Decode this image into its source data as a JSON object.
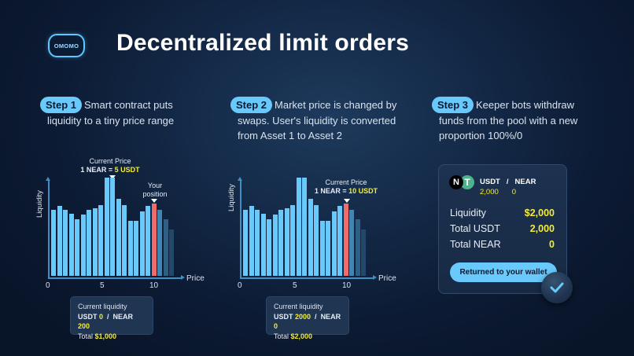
{
  "header": {
    "logo_text": "OMOMO",
    "title": "Decentralized limit orders"
  },
  "steps": [
    {
      "label": "Step 1",
      "line1": "Smart contract puts",
      "line2": "liquidity to a tiny price range",
      "line3": ""
    },
    {
      "label": "Step 2",
      "line1": "Market price is changed by",
      "line2": "swaps. User's liquidity is converted",
      "line3": "from Asset 1 to Asset 2"
    },
    {
      "label": "Step 3",
      "line1": "Keeper bots withdraw",
      "line2": "funds from the pool with a new",
      "line3": "proportion 100%/0"
    }
  ],
  "chart_common": {
    "ylabel": "Liquidity",
    "xlabel": "Price",
    "ticks": [
      "0",
      "5",
      "10"
    ]
  },
  "chart1": {
    "annotation_title": "Current Price",
    "annotation_prefix": "1 NEAR = ",
    "annotation_value": "5 USDT",
    "position_label_1": "Your",
    "position_label_2": "position",
    "liquidity_box": {
      "title": "Current liquidity",
      "usdt_label": "USDT",
      "usdt_value": "0",
      "near_label": "NEAR",
      "near_value": "200",
      "total_label": "Total",
      "total_value": "$1,000"
    }
  },
  "chart2": {
    "annotation_title": "Current Price",
    "annotation_prefix": "1 NEAR = ",
    "annotation_value": "10 USDT",
    "liquidity_box": {
      "title": "Current liquidity",
      "usdt_label": "USDT",
      "usdt_value": "2000",
      "near_label": "NEAR",
      "near_value": "0",
      "total_label": "Total",
      "total_value": "$2,000"
    }
  },
  "card": {
    "near_icon": "N",
    "usdt_icon": "T",
    "pair_a": "USDT",
    "pair_sep": "/",
    "pair_b": "NEAR",
    "pair_a_value": "2,000",
    "pair_b_value": "0",
    "rows": [
      {
        "label": "Liquidity",
        "value": "$2,000"
      },
      {
        "label": "Total USDT",
        "value": "2,000"
      },
      {
        "label": "Total NEAR",
        "value": "0"
      }
    ],
    "button_label": "Returned to your wallet",
    "check_icon": "checkmark-icon"
  },
  "colors": {
    "accent": "#69c9fb",
    "highlight": "#f3ec3a",
    "position_bar": "#f26b6b",
    "bar": "#69c9fb",
    "bar_fade1": "#3f86b3",
    "bar_fade2": "#2e5f84",
    "bar_fade3": "#24486a"
  },
  "chart_data": [
    {
      "type": "bar",
      "title": "Step 1 liquidity distribution",
      "xlabel": "Price",
      "ylabel": "Liquidity",
      "x_ticks": [
        0,
        5,
        10
      ],
      "values": [
        80,
        85,
        80,
        75,
        69,
        74,
        80,
        82,
        86,
        119,
        119,
        93,
        86,
        67,
        67,
        78,
        85,
        88,
        80,
        69,
        56
      ],
      "highlight_index": 17,
      "annotations": [
        "Current Price 1 NEAR = 5 USDT",
        "Your position"
      ]
    },
    {
      "type": "bar",
      "title": "Step 2 liquidity distribution",
      "xlabel": "Price",
      "ylabel": "Liquidity",
      "x_ticks": [
        0,
        5,
        10
      ],
      "values": [
        80,
        85,
        80,
        75,
        69,
        74,
        80,
        82,
        86,
        119,
        119,
        93,
        86,
        67,
        67,
        78,
        85,
        88,
        80,
        69,
        56
      ],
      "highlight_index": 17,
      "annotations": [
        "Current Price 1 NEAR = 10 USDT"
      ]
    }
  ]
}
